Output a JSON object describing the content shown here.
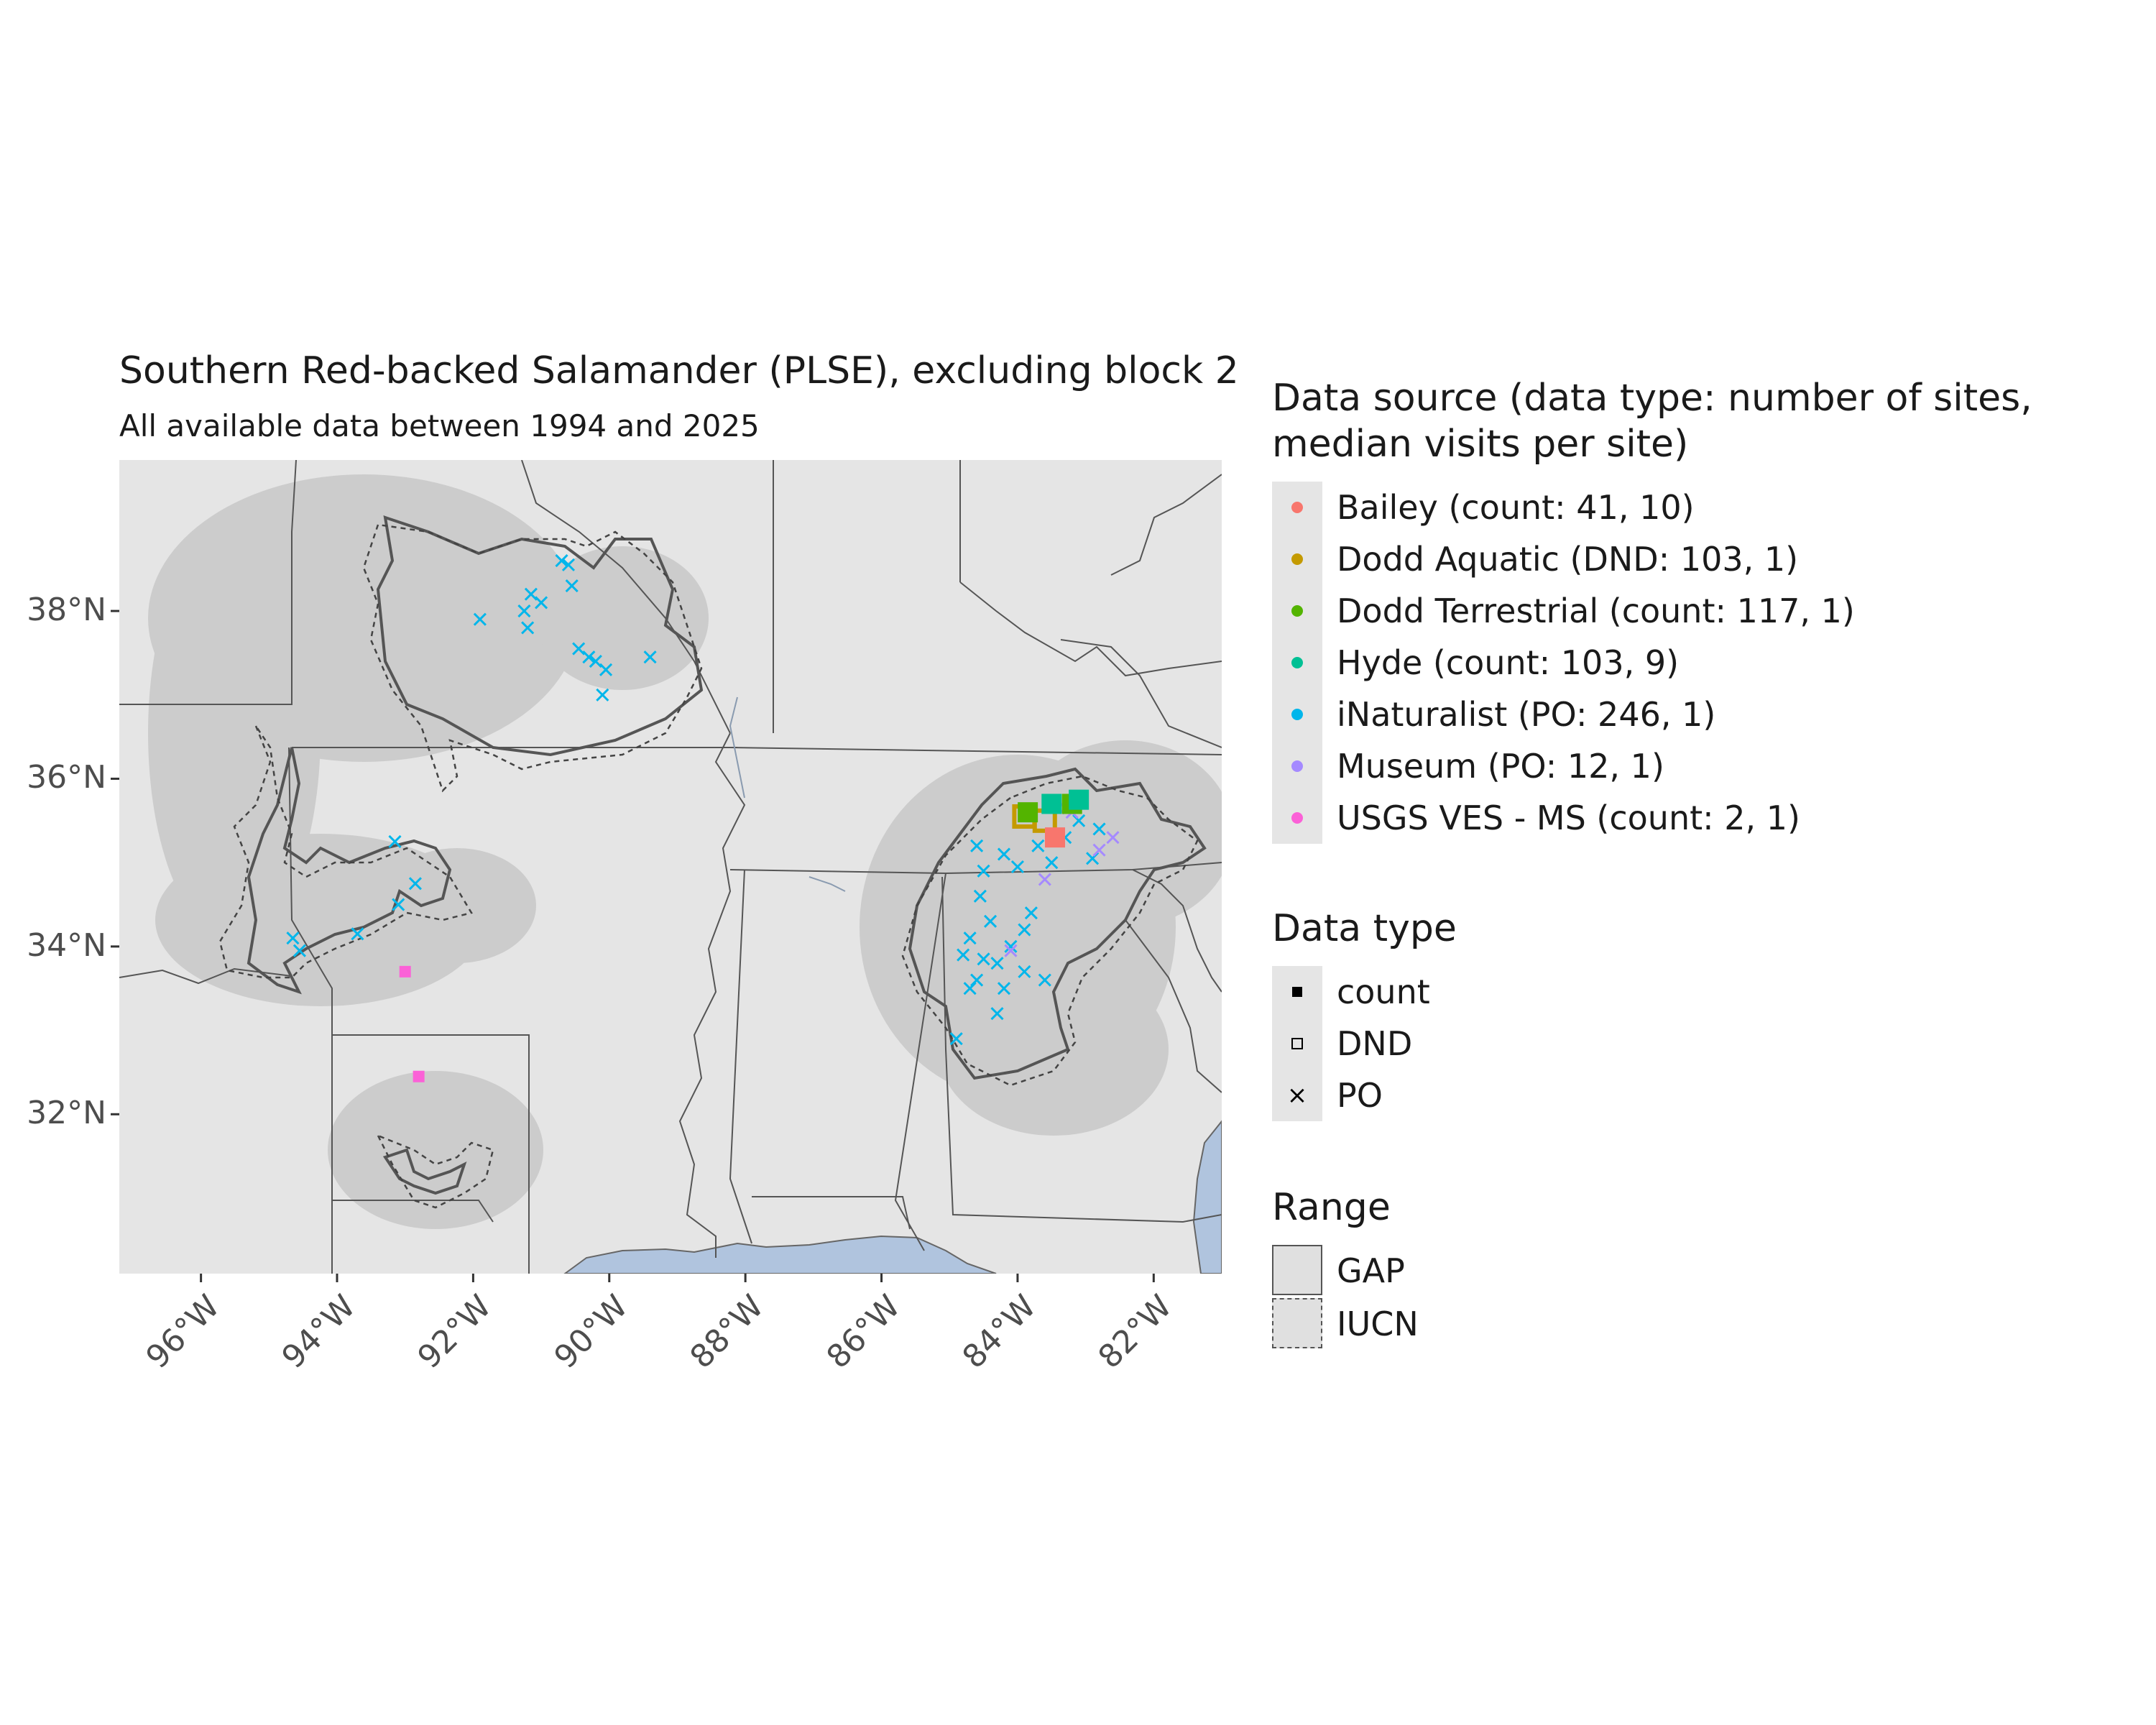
{
  "title": "Southern Red-backed Salamander (PLSE), excluding block 2",
  "subtitle": "All available data between 1994 and 2025",
  "axes": {
    "lat_ticks": [
      "38°N",
      "36°N",
      "34°N",
      "32°N"
    ],
    "lon_ticks": [
      "96°W",
      "94°W",
      "92°W",
      "90°W",
      "88°W",
      "86°W",
      "84°W",
      "82°W"
    ],
    "xlim": [
      -97.2,
      -81.0
    ],
    "ylim": [
      30.1,
      39.8
    ]
  },
  "legend_source": {
    "title": "Data source (data type: number of sites, median visits per site)",
    "title_line1": "Data source (data type: number of sites,",
    "title_line2": "median visits per site)",
    "items": [
      {
        "label": "Bailey (count: 41, 10)",
        "color": "#F8766D"
      },
      {
        "label": "Dodd Aquatic (DND: 103, 1)",
        "color": "#C49A00"
      },
      {
        "label": "Dodd Terrestrial (count: 117, 1)",
        "color": "#53B400"
      },
      {
        "label": "Hyde (count: 103, 9)",
        "color": "#00C094"
      },
      {
        "label": "iNaturalist (PO: 246, 1)",
        "color": "#00B6EB"
      },
      {
        "label": "Museum (PO: 12, 1)",
        "color": "#A58AFF"
      },
      {
        "label": "USGS VES - MS (count: 2, 1)",
        "color": "#FB61D7"
      }
    ]
  },
  "legend_type": {
    "title": "Data type",
    "items": [
      {
        "label": "count",
        "shape": "filled-square"
      },
      {
        "label": "DND",
        "shape": "open-square"
      },
      {
        "label": "PO",
        "shape": "x"
      }
    ]
  },
  "legend_range": {
    "title": "Range",
    "items": [
      {
        "label": "GAP",
        "line": "solid"
      },
      {
        "label": "IUCN",
        "line": "dashed"
      }
    ]
  },
  "colors": {
    "panel": "#e5e5e5",
    "water": "#b0c4de",
    "buffer": "#cccccc",
    "boundary": "#555555",
    "axis_text": "#4d4d4d"
  },
  "chart_data": {
    "type": "scatter",
    "map": "range map with occurrence points",
    "series": [
      {
        "name": "iNaturalist (PO: 246, 1)",
        "shape": "x",
        "points": [
          [
            -94.65,
            34.1
          ],
          [
            -94.55,
            33.95
          ],
          [
            -93.7,
            34.15
          ],
          [
            -93.15,
            35.25
          ],
          [
            -93.1,
            34.5
          ],
          [
            -92.85,
            34.75
          ],
          [
            -91.9,
            37.9
          ],
          [
            -91.25,
            38.0
          ],
          [
            -91.15,
            38.2
          ],
          [
            -91.0,
            38.1
          ],
          [
            -91.2,
            37.8
          ],
          [
            -90.7,
            38.6
          ],
          [
            -90.6,
            38.55
          ],
          [
            -90.55,
            38.3
          ],
          [
            -90.45,
            37.55
          ],
          [
            -90.3,
            37.45
          ],
          [
            -90.2,
            37.4
          ],
          [
            -90.05,
            37.3
          ],
          [
            -90.1,
            37.0
          ],
          [
            -89.4,
            37.45
          ],
          [
            -84.6,
            35.2
          ],
          [
            -84.5,
            34.9
          ],
          [
            -84.2,
            35.1
          ],
          [
            -84.0,
            34.95
          ],
          [
            -84.55,
            34.6
          ],
          [
            -84.4,
            34.3
          ],
          [
            -84.7,
            34.1
          ],
          [
            -84.8,
            33.9
          ],
          [
            -84.5,
            33.85
          ],
          [
            -84.3,
            33.8
          ],
          [
            -84.1,
            34.0
          ],
          [
            -83.9,
            34.2
          ],
          [
            -84.6,
            33.6
          ],
          [
            -84.7,
            33.5
          ],
          [
            -84.3,
            33.2
          ],
          [
            -84.9,
            32.9
          ],
          [
            -84.2,
            33.5
          ],
          [
            -83.9,
            33.7
          ],
          [
            -83.8,
            34.4
          ],
          [
            -83.6,
            33.6
          ],
          [
            -83.3,
            35.3
          ],
          [
            -83.1,
            35.5
          ],
          [
            -82.8,
            35.4
          ],
          [
            -82.9,
            35.05
          ],
          [
            -83.5,
            35.0
          ],
          [
            -83.7,
            35.2
          ]
        ]
      },
      {
        "name": "Museum (PO: 12, 1)",
        "shape": "x",
        "points": [
          [
            -83.4,
            35.65
          ],
          [
            -83.2,
            35.6
          ],
          [
            -83.6,
            34.8
          ],
          [
            -84.1,
            33.95
          ],
          [
            -82.6,
            35.3
          ],
          [
            -82.8,
            35.15
          ]
        ]
      },
      {
        "name": "USGS VES - MS (count: 2, 1)",
        "shape": "filled-square",
        "points": [
          [
            -93.0,
            33.7
          ],
          [
            -92.8,
            32.45
          ]
        ]
      },
      {
        "name": "Dodd Aquatic (DND: 103, 1)",
        "shape": "open-square",
        "points": [
          [
            -83.9,
            35.55
          ],
          [
            -83.6,
            35.5
          ]
        ]
      },
      {
        "name": "Dodd Terrestrial (count: 117, 1)",
        "shape": "filled-square",
        "points": [
          [
            -83.85,
            35.6
          ],
          [
            -83.2,
            35.7
          ]
        ]
      },
      {
        "name": "Hyde (count: 103, 9)",
        "shape": "filled-square",
        "points": [
          [
            -83.5,
            35.7
          ],
          [
            -83.1,
            35.75
          ]
        ]
      },
      {
        "name": "Bailey (count: 41, 10)",
        "shape": "filled-square",
        "points": [
          [
            -83.45,
            35.3
          ]
        ]
      }
    ]
  }
}
